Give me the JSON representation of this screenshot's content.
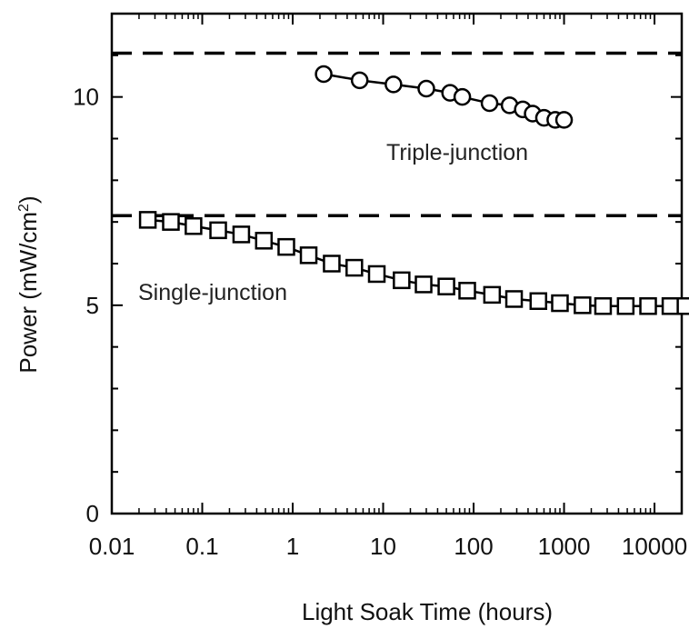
{
  "chart_data": {
    "type": "scatter",
    "title": "",
    "xlabel": "Light Soak Time (hours)",
    "ylabel": "Power (mW/cm",
    "ylabel_superscript": "2",
    "ylabel_close": ")",
    "xscale": "log",
    "xlim": [
      0.01,
      20000
    ],
    "ylim": [
      0,
      12
    ],
    "x_tick_labels": [
      "0.01",
      "0.1",
      "1",
      "10",
      "100",
      "1000",
      "10000"
    ],
    "x_ticks": [
      0.01,
      0.1,
      1,
      10,
      100,
      1000,
      10000
    ],
    "y_tick_labels": [
      "0",
      "5",
      "10"
    ],
    "y_ticks": [
      0,
      5,
      10
    ],
    "grid": false,
    "legend": "none",
    "reference_lines": [
      {
        "style": "dashed",
        "y": 11.05
      },
      {
        "style": "dashed",
        "y": 7.15
      }
    ],
    "annotations": [
      "Triple-junction",
      "Single-junction"
    ],
    "series": [
      {
        "marker": "circle",
        "connected": true,
        "x": [
          2.2,
          5.5,
          13,
          30,
          55,
          75,
          150,
          250,
          350,
          450,
          600,
          800,
          1000
        ],
        "y": [
          10.55,
          10.4,
          10.3,
          10.2,
          10.1,
          10.0,
          9.85,
          9.8,
          9.7,
          9.6,
          9.5,
          9.45,
          9.45
        ]
      },
      {
        "marker": "square",
        "connected": true,
        "x": [
          0.025,
          0.045,
          0.08,
          0.15,
          0.27,
          0.48,
          0.85,
          1.5,
          2.7,
          4.8,
          8.5,
          16,
          28,
          50,
          85,
          160,
          280,
          520,
          900,
          1600,
          2700,
          4800,
          8500,
          15000,
          22000
        ],
        "y": [
          7.05,
          7.0,
          6.9,
          6.8,
          6.7,
          6.55,
          6.4,
          6.2,
          6.0,
          5.9,
          5.75,
          5.6,
          5.5,
          5.45,
          5.35,
          5.25,
          5.15,
          5.1,
          5.05,
          5.0,
          4.98,
          4.98,
          4.98,
          4.98,
          4.98
        ]
      }
    ]
  }
}
